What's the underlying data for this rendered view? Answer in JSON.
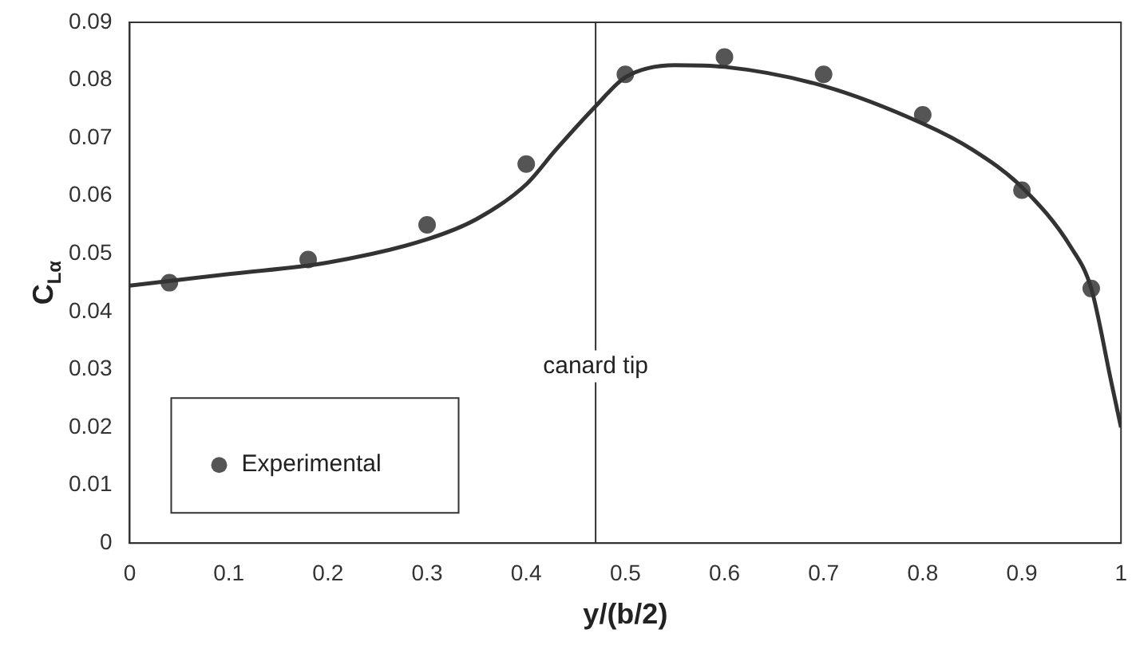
{
  "chart_data": {
    "type": "line",
    "xlabel": "y/(b/2)",
    "ylabel": "C$_{Lα}$",
    "xlim": [
      0,
      1
    ],
    "xticks": [
      0,
      0.1,
      0.2,
      0.3,
      0.4,
      0.5,
      0.6,
      0.7,
      0.8,
      0.9,
      1
    ],
    "ylim": [
      0,
      0.09
    ],
    "yticks": [
      0,
      0.01,
      0.02,
      0.03,
      0.04,
      0.05,
      0.06,
      0.07,
      0.08,
      0.09
    ],
    "grid": false,
    "legend": "bottom left",
    "series": [
      {
        "color": "#333333",
        "marker": "none",
        "line_style": "solid",
        "x": [
          0,
          0.1,
          0.2,
          0.3,
          0.35,
          0.4,
          0.43,
          0.47,
          0.5,
          0.55,
          0.6,
          0.7,
          0.8,
          0.85,
          0.9,
          0.95,
          0.97,
          0.99,
          1.0
        ],
        "values": [
          0.0445,
          0.0465,
          0.0485,
          0.0525,
          0.056,
          0.062,
          0.068,
          0.0755,
          0.0805,
          0.0826,
          0.0823,
          0.079,
          0.0725,
          0.068,
          0.0615,
          0.051,
          0.044,
          0.028,
          0.02
        ]
      },
      {
        "type": "scatter",
        "name": "Experimental",
        "color": "#555555",
        "marker": "circle",
        "x": [
          0.04,
          0.18,
          0.3,
          0.4,
          0.5,
          0.6,
          0.7,
          0.8,
          0.9,
          0.97
        ],
        "values": [
          0.045,
          0.049,
          0.055,
          0.0655,
          0.081,
          0.084,
          0.081,
          0.074,
          0.061,
          0.044
        ]
      }
    ],
    "ref_lines": [
      {
        "axis": "x",
        "value": 0.47,
        "label": "canard tip",
        "color": "#333333"
      }
    ]
  }
}
